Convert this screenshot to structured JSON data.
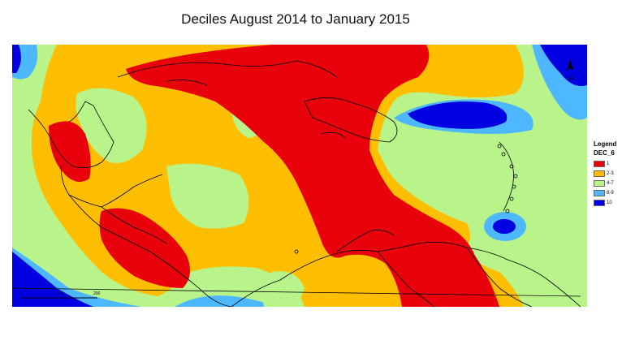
{
  "title": "Deciles August 2014 to January 2015",
  "legend": {
    "title": "Legend",
    "field": "DEC_6",
    "items": [
      {
        "label": "1",
        "color": "#e8000b"
      },
      {
        "label": "2-3",
        "color": "#ffbf00"
      },
      {
        "label": "4-7",
        "color": "#b8f48a"
      },
      {
        "label": "8-9",
        "color": "#4db8ff"
      },
      {
        "label": "10",
        "color": "#0000e0"
      }
    ]
  },
  "north_arrow": {
    "label": "N",
    "icon": "north-arrow-icon"
  },
  "scale_bar": {
    "labels": [
      "0",
      "100",
      "200"
    ]
  }
}
